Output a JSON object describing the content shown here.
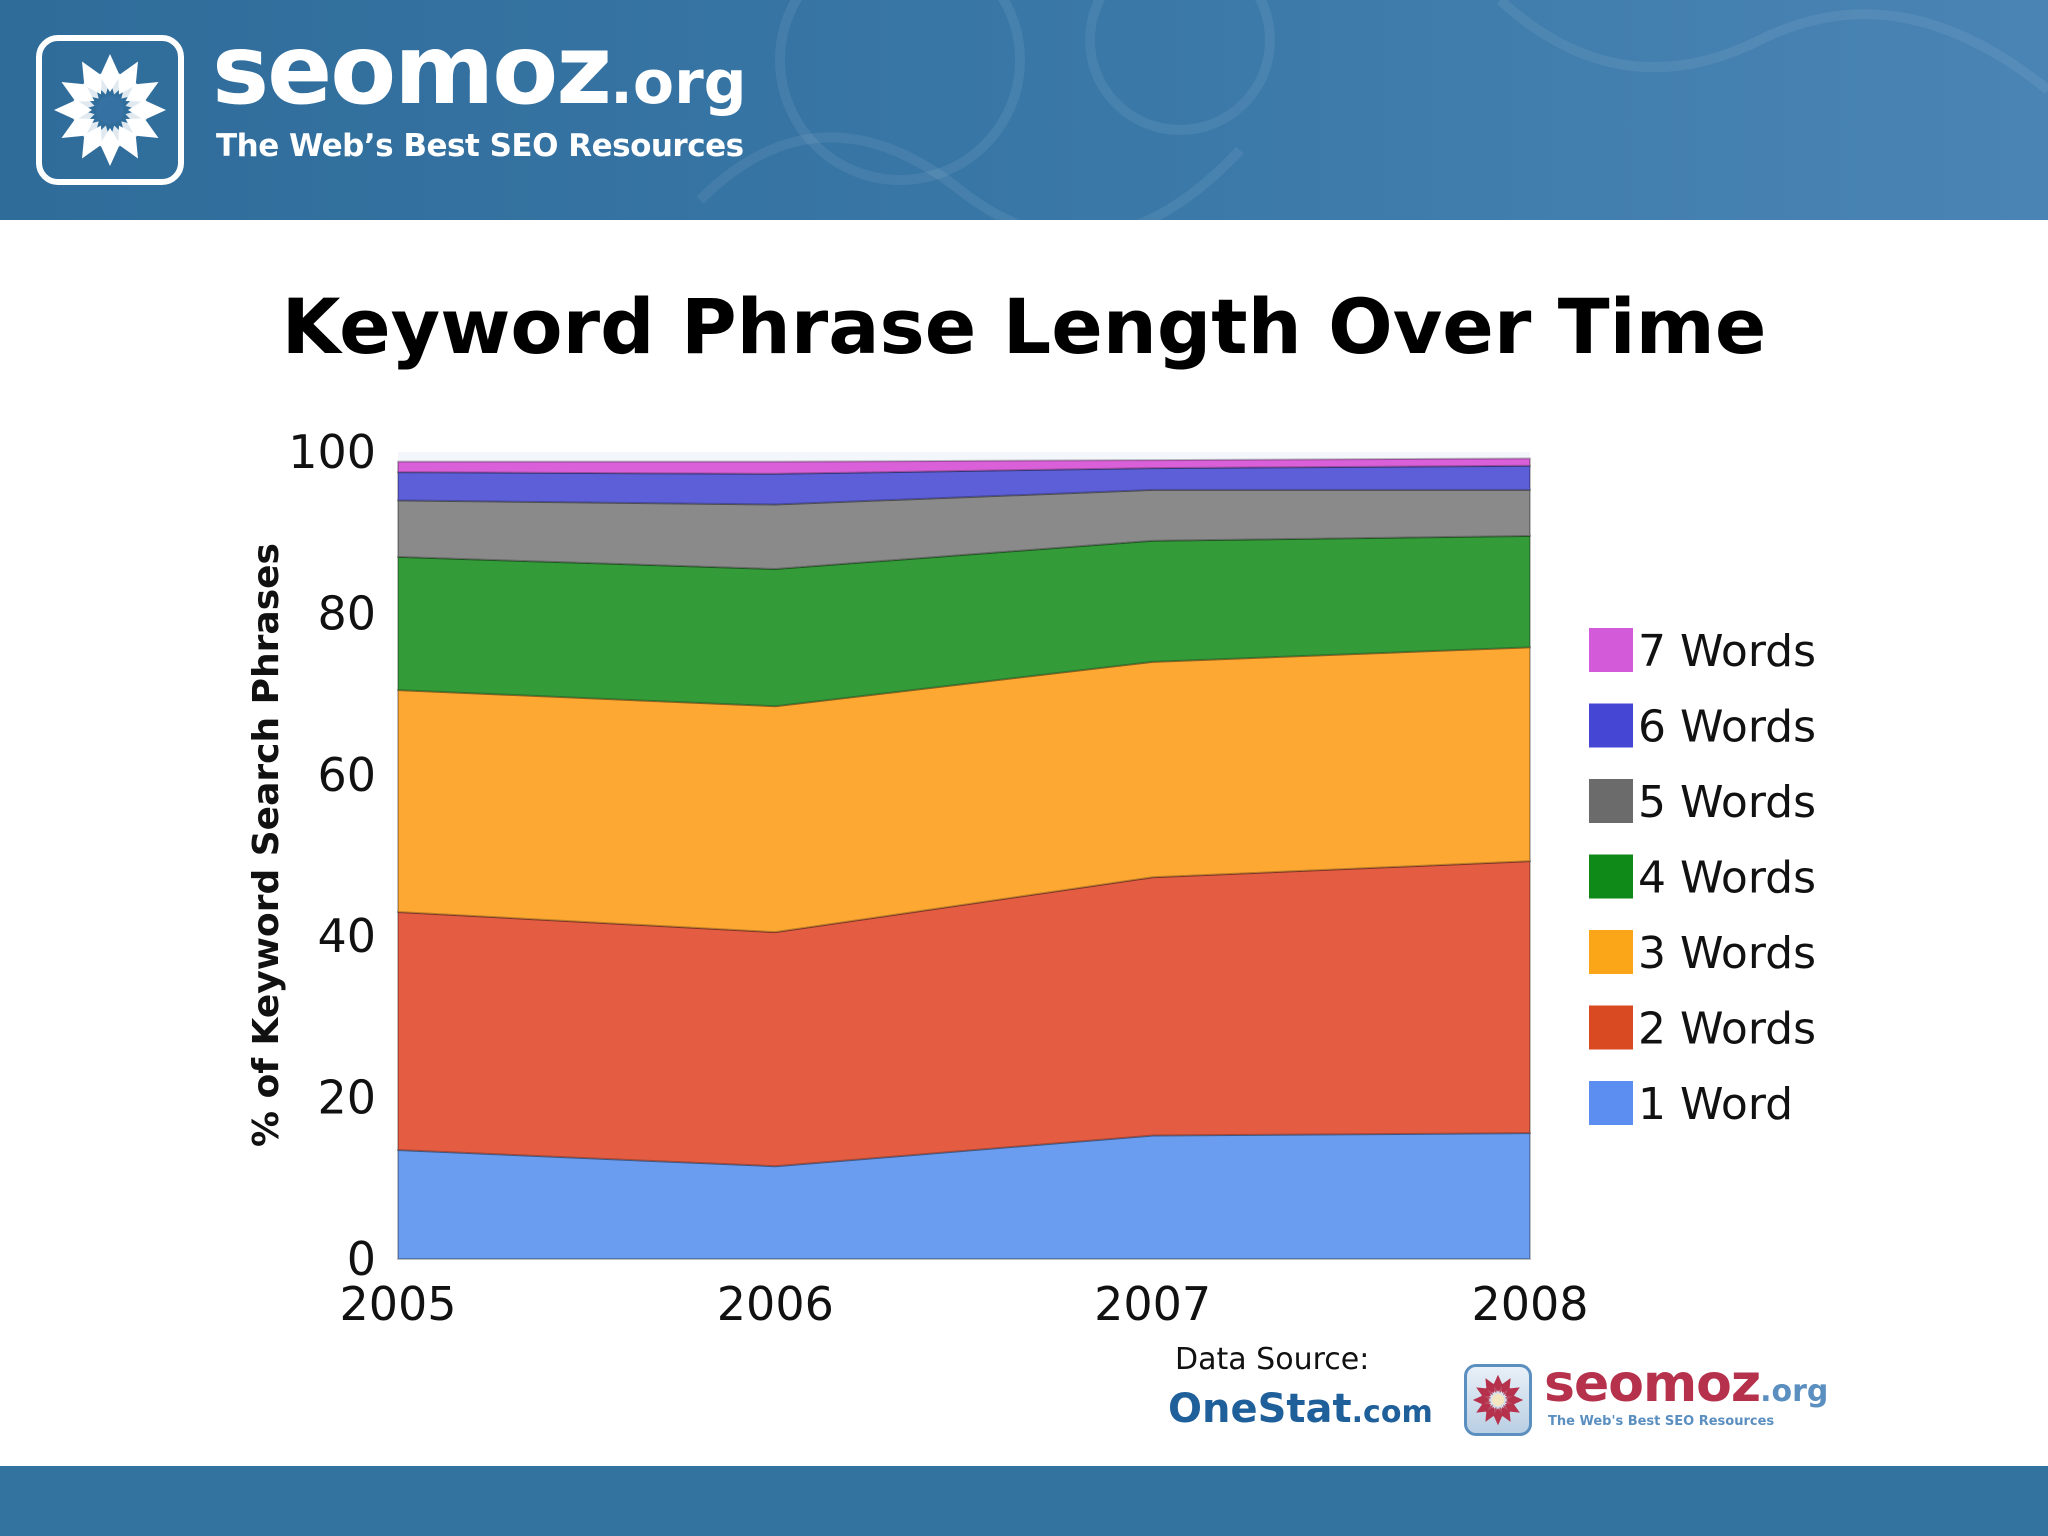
{
  "header": {
    "brand": "seomoz",
    "brand_tld": ".org",
    "tagline": "The Web’s Best SEO Resources",
    "logo_icon": "sun-flower-icon",
    "background_color": "#3572a3"
  },
  "chart_data": {
    "type": "area",
    "stacked": true,
    "title": "Keyword Phrase Length Over Time",
    "xlabel": "",
    "ylabel": "% of Keyword Search Phrases",
    "x": [
      "2005",
      "2006",
      "2007",
      "2008"
    ],
    "ylim": [
      0,
      100
    ],
    "yticks": [
      0,
      20,
      40,
      60,
      80,
      100
    ],
    "grid": false,
    "legend_position": "right",
    "series": [
      {
        "name": "1 Word",
        "values": [
          13.5,
          11.5,
          15.3,
          15.6
        ],
        "color": "#6a9cf0",
        "legend_color": "#5b8ef0"
      },
      {
        "name": "2 Words",
        "values": [
          29.5,
          29,
          32,
          33.7
        ],
        "color": "#e45d42",
        "legend_color": "#d94a22"
      },
      {
        "name": "3 Words",
        "values": [
          27.5,
          28,
          26.7,
          26.5
        ],
        "color": "#fda832",
        "legend_color": "#fba619"
      },
      {
        "name": "4 Words",
        "values": [
          16.5,
          17,
          15,
          13.8
        ],
        "color": "#339c38",
        "legend_color": "#0f8a18"
      },
      {
        "name": "5 Words",
        "values": [
          7,
          8,
          6.3,
          5.7
        ],
        "color": "#8a8a8a",
        "legend_color": "#6b6b6b"
      },
      {
        "name": "6 Words",
        "values": [
          3.5,
          3.8,
          2.7,
          3
        ],
        "color": "#5d5fd8",
        "legend_color": "#4646d4"
      },
      {
        "name": "7 Words",
        "values": [
          1.3,
          1.5,
          1,
          0.9
        ],
        "color": "#d960d9",
        "legend_color": "#d35ad8"
      }
    ]
  },
  "source": {
    "label": "Data Source:",
    "name": "OneStat",
    "name_suffix": ".com"
  },
  "footer_logo": {
    "brand": "seomoz",
    "brand_tld": ".org",
    "tagline": "The Web's Best SEO Resources",
    "icon": "sun-flower-icon"
  }
}
